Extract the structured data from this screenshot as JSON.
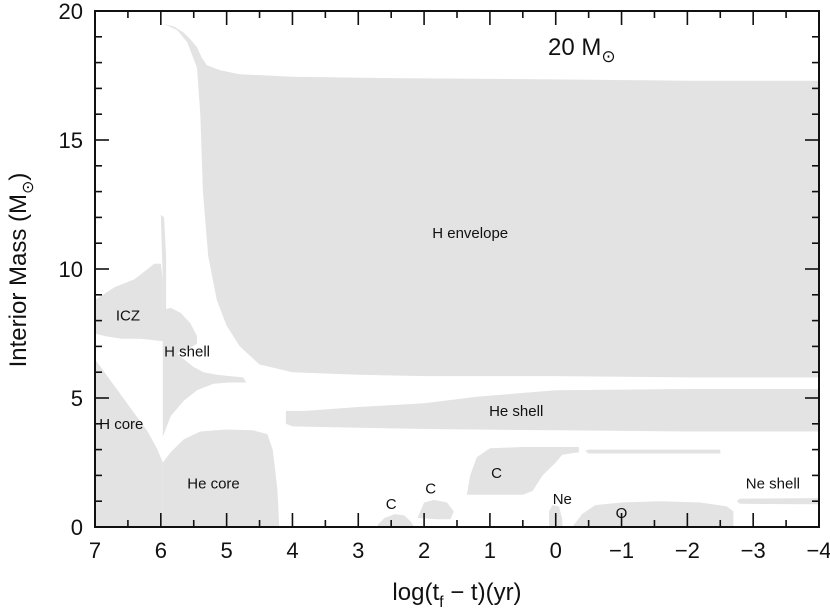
{
  "chart_data": {
    "type": "area",
    "title": "20 M⊙",
    "title_text": "20 M",
    "title_sub": "⊙",
    "xlabel_parts": {
      "pre": "log(t",
      "sub": "f",
      "post": " − t)(yr)"
    },
    "ylabel_parts": {
      "pre": "Interior Mass (M",
      "sub": "⊙",
      "post": ")"
    },
    "xlim": [
      7,
      -4
    ],
    "ylim": [
      0,
      20
    ],
    "x_ticks": [
      "7",
      "6",
      "5",
      "4",
      "3",
      "2",
      "1",
      "0",
      "−1",
      "−2",
      "−3",
      "−4"
    ],
    "y_ticks": [
      "0",
      "5",
      "10",
      "15",
      "20"
    ],
    "fill_color": "#e3e3e3",
    "regions": [
      {
        "name": "H envelope",
        "label_pos": [
          1.3,
          11.2
        ],
        "points": [
          [
            5.95,
            19.5
          ],
          [
            5.8,
            19.4
          ],
          [
            5.65,
            19.15
          ],
          [
            5.55,
            18.9
          ],
          [
            5.45,
            18.6
          ],
          [
            5.38,
            18.2
          ],
          [
            5.3,
            17.9
          ],
          [
            5.1,
            17.7
          ],
          [
            4.8,
            17.55
          ],
          [
            4.0,
            17.45
          ],
          [
            2.5,
            17.4
          ],
          [
            0.0,
            17.35
          ],
          [
            -2.0,
            17.3
          ],
          [
            -4,
            17.3
          ],
          [
            -4,
            5.8
          ],
          [
            -2.0,
            5.8
          ],
          [
            0.0,
            5.85
          ],
          [
            2.0,
            5.85
          ],
          [
            3.0,
            5.9
          ],
          [
            4.0,
            6.0
          ],
          [
            4.5,
            6.3
          ],
          [
            4.8,
            7.0
          ],
          [
            5.0,
            7.8
          ],
          [
            5.15,
            8.8
          ],
          [
            5.28,
            10.5
          ],
          [
            5.36,
            13.0
          ],
          [
            5.4,
            16.0
          ],
          [
            5.45,
            17.8
          ],
          [
            5.6,
            18.8
          ],
          [
            5.75,
            19.25
          ]
        ]
      },
      {
        "name": "ICZ",
        "label_pos": [
          6.5,
          8.0
        ],
        "points": [
          [
            7,
            8.8
          ],
          [
            6.7,
            9.3
          ],
          [
            6.4,
            9.6
          ],
          [
            6.2,
            10.0
          ],
          [
            6.1,
            10.2
          ],
          [
            6.0,
            10.2
          ],
          [
            5.97,
            9.6
          ],
          [
            5.97,
            8.4
          ],
          [
            5.85,
            8.5
          ],
          [
            5.7,
            8.3
          ],
          [
            5.55,
            7.9
          ],
          [
            5.45,
            7.4
          ],
          [
            5.45,
            7.1
          ],
          [
            5.65,
            6.8
          ],
          [
            5.97,
            6.6
          ],
          [
            5.97,
            7.2
          ],
          [
            6.3,
            7.3
          ],
          [
            6.6,
            7.3
          ],
          [
            6.85,
            7.4
          ],
          [
            7,
            7.5
          ]
        ]
      },
      {
        "name": "H shell",
        "label_pos": [
          5.6,
          6.6
        ],
        "points": [
          [
            5.97,
            9.6
          ],
          [
            6.0,
            12.1
          ],
          [
            5.95,
            12.0
          ],
          [
            5.92,
            10.5
          ],
          [
            5.92,
            7.3
          ],
          [
            5.85,
            7.0
          ],
          [
            5.7,
            6.6
          ],
          [
            5.5,
            6.2
          ],
          [
            5.35,
            6.0
          ],
          [
            5.15,
            5.9
          ],
          [
            4.95,
            5.85
          ],
          [
            4.75,
            5.8
          ],
          [
            4.7,
            5.6
          ],
          [
            4.95,
            5.6
          ],
          [
            5.2,
            5.55
          ],
          [
            5.45,
            5.3
          ],
          [
            5.65,
            4.9
          ],
          [
            5.85,
            4.3
          ],
          [
            5.97,
            3.5
          ],
          [
            5.97,
            6.6
          ]
        ]
      },
      {
        "name": "H core",
        "label_pos": [
          6.6,
          3.8
        ],
        "points": [
          [
            7,
            0
          ],
          [
            5.97,
            0
          ],
          [
            5.97,
            2.5
          ],
          [
            6.05,
            3.0
          ],
          [
            6.2,
            3.7
          ],
          [
            6.4,
            4.4
          ],
          [
            6.6,
            5.1
          ],
          [
            6.8,
            5.8
          ],
          [
            7,
            6.5
          ]
        ]
      },
      {
        "name": "He core",
        "label_pos": [
          5.2,
          1.5
        ],
        "points": [
          [
            5.97,
            0
          ],
          [
            4.2,
            0
          ],
          [
            4.23,
            1.5
          ],
          [
            4.3,
            3.0
          ],
          [
            4.38,
            3.6
          ],
          [
            4.6,
            3.75
          ],
          [
            5.0,
            3.78
          ],
          [
            5.4,
            3.7
          ],
          [
            5.65,
            3.4
          ],
          [
            5.85,
            2.9
          ],
          [
            5.97,
            2.5
          ]
        ]
      },
      {
        "name": "He shell",
        "label_pos": [
          0.6,
          4.3
        ],
        "points": [
          [
            4.1,
            4.5
          ],
          [
            3.8,
            4.5
          ],
          [
            3.0,
            4.65
          ],
          [
            2.0,
            4.8
          ],
          [
            1.2,
            5.05
          ],
          [
            0.0,
            5.3
          ],
          [
            -2.0,
            5.35
          ],
          [
            -4,
            5.35
          ],
          [
            -4,
            3.7
          ],
          [
            -2.0,
            3.7
          ],
          [
            0.0,
            3.75
          ],
          [
            2.0,
            3.8
          ],
          [
            3.0,
            3.85
          ],
          [
            4.0,
            3.9
          ],
          [
            4.1,
            4.0
          ]
        ]
      },
      {
        "name": "C",
        "label_pos": [
          2.5,
          0.7
        ],
        "points": [
          [
            2.7,
            0
          ],
          [
            2.7,
            0.1
          ],
          [
            2.6,
            0.35
          ],
          [
            2.45,
            0.5
          ],
          [
            2.3,
            0.45
          ],
          [
            2.2,
            0.2
          ],
          [
            2.15,
            0
          ]
        ]
      },
      {
        "name": "C",
        "label_pos": [
          1.9,
          1.3
        ],
        "points": [
          [
            2.1,
            0.35
          ],
          [
            2.0,
            0.95
          ],
          [
            1.85,
            1.05
          ],
          [
            1.65,
            0.95
          ],
          [
            1.55,
            0.6
          ],
          [
            1.6,
            0.3
          ],
          [
            1.8,
            0.3
          ]
        ]
      },
      {
        "name": "C",
        "label_pos": [
          0.9,
          1.9
        ],
        "points": [
          [
            1.35,
            1.25
          ],
          [
            1.3,
            2.0
          ],
          [
            1.2,
            2.7
          ],
          [
            1.0,
            3.05
          ],
          [
            0.5,
            3.1
          ],
          [
            -0.35,
            3.1
          ],
          [
            -0.35,
            2.9
          ],
          [
            -0.1,
            2.8
          ],
          [
            0.0,
            2.5
          ],
          [
            0.2,
            2.0
          ],
          [
            0.35,
            1.4
          ],
          [
            0.5,
            1.25
          ]
        ]
      },
      {
        "name": "Ne",
        "label_pos": [
          -0.1,
          0.9
        ],
        "points": [
          [
            0.1,
            0
          ],
          [
            0.1,
            0.6
          ],
          [
            0.05,
            0.85
          ],
          [
            -0.05,
            0.8
          ],
          [
            -0.1,
            0.3
          ],
          [
            -0.1,
            0
          ]
        ]
      },
      {
        "name": "O",
        "label_pos": [
          -1.0,
          0.35
        ],
        "points": [
          [
            -0.25,
            0
          ],
          [
            -0.4,
            0.5
          ],
          [
            -0.6,
            0.85
          ],
          [
            -1.0,
            0.95
          ],
          [
            -1.6,
            1.0
          ],
          [
            -2.2,
            0.95
          ],
          [
            -2.6,
            0.8
          ],
          [
            -2.7,
            0.6
          ],
          [
            -2.7,
            0
          ]
        ]
      },
      {
        "name": "",
        "label_pos": null,
        "points": [
          [
            -0.45,
            2.95
          ],
          [
            -0.5,
            3.0
          ],
          [
            -2.5,
            3.0
          ],
          [
            -2.5,
            2.85
          ],
          [
            -0.5,
            2.85
          ]
        ]
      },
      {
        "name": "Ne shell",
        "label_pos": [
          -3.3,
          1.5
        ],
        "points": [
          [
            -2.75,
            1.0
          ],
          [
            -2.8,
            1.1
          ],
          [
            -4,
            1.12
          ],
          [
            -4,
            0.88
          ],
          [
            -2.8,
            0.9
          ]
        ]
      }
    ]
  }
}
